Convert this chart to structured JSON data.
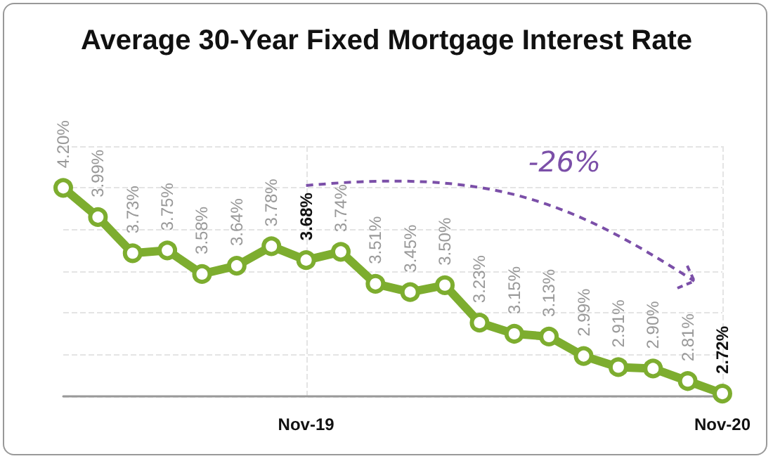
{
  "chart_data": {
    "type": "line",
    "title": "Average 30-Year Fixed Mortgage Interest Rate",
    "categories": [
      null,
      null,
      null,
      null,
      null,
      null,
      null,
      "Nov-19",
      null,
      null,
      null,
      null,
      null,
      null,
      null,
      null,
      null,
      null,
      null,
      "Nov-20"
    ],
    "series": [
      {
        "color": "#7dad2f",
        "values": [
          4.2,
          3.99,
          3.73,
          3.75,
          3.58,
          3.64,
          3.78,
          3.68,
          3.74,
          3.51,
          3.45,
          3.5,
          3.23,
          3.15,
          3.13,
          2.99,
          2.91,
          2.9,
          2.81,
          2.72
        ],
        "value_labels": [
          "4.20%",
          "3.99%",
          "3.73%",
          "3.75%",
          "3.58%",
          "3.64%",
          "3.78%",
          "3.68%",
          "3.74%",
          "3.51%",
          "3.45%",
          "3.50%",
          "3.23%",
          "3.15%",
          "3.13%",
          "2.99%",
          "2.91%",
          "2.90%",
          "2.81%",
          "2.72%"
        ]
      }
    ],
    "tick_labels": "x",
    "grid": true,
    "marker": "circle",
    "line_style": "solid",
    "annotations": [
      "-26%"
    ]
  }
}
